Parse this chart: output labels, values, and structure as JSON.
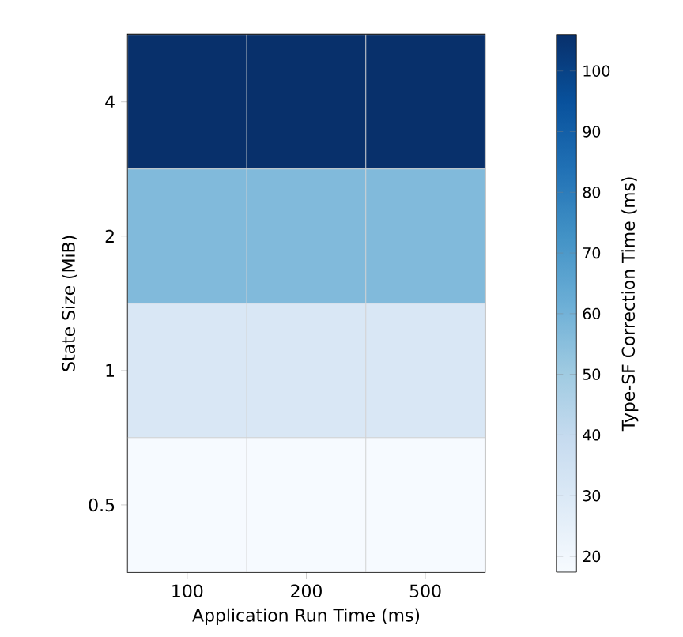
{
  "chart_data": {
    "type": "heatmap",
    "xlabel": "Application Run Time (ms)",
    "ylabel": "State Size (MiB)",
    "clabel": "Type-SF Correction Time (ms)",
    "categories": [
      "100",
      "200",
      "500"
    ],
    "y_categories": [
      "4",
      "2",
      "1",
      "0.5"
    ],
    "cells": [
      [
        106,
        106,
        106
      ],
      [
        57,
        57,
        57
      ],
      [
        31,
        31,
        31
      ],
      [
        18,
        18,
        18
      ]
    ],
    "clim": [
      17.4,
      106
    ],
    "cticks": [
      20,
      30,
      40,
      50,
      60,
      70,
      80,
      90,
      100
    ]
  }
}
